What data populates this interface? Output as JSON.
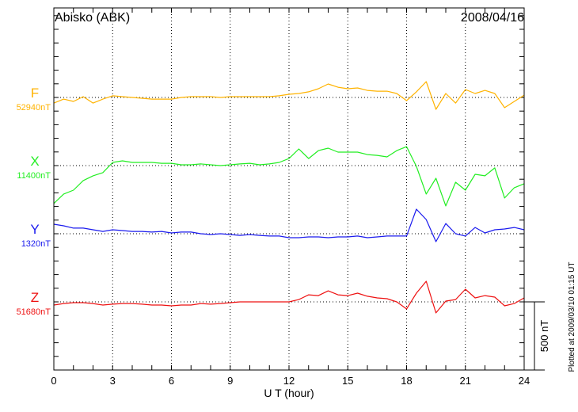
{
  "chart_data": {
    "type": "line",
    "title": "Abisko (ABK)",
    "date": "2008/04/16",
    "xlabel": "U T (hour)",
    "xlim": [
      0,
      24
    ],
    "x_ticks": [
      "0",
      "3",
      "6",
      "9",
      "12",
      "15",
      "18",
      "21",
      "24"
    ],
    "x_step_hours": 0.5,
    "scale_label": "500 nT",
    "scale_nT": 500,
    "tick_interval_nT": 100,
    "footer": "Plotted at 2009/03/10 01:15 UT",
    "grid": true,
    "series": [
      {
        "name": "F",
        "baseline_label": "52940nT",
        "color": "#ffb300",
        "values": [
          -41,
          -12,
          -29,
          6,
          -41,
          -12,
          12,
          6,
          0,
          -6,
          -12,
          -12,
          -12,
          0,
          6,
          6,
          6,
          0,
          6,
          6,
          6,
          6,
          6,
          12,
          23,
          29,
          41,
          64,
          99,
          75,
          64,
          70,
          52,
          46,
          46,
          29,
          -23,
          41,
          116,
          -87,
          29,
          -41,
          58,
          29,
          52,
          29,
          -75,
          -29,
          17
        ]
      },
      {
        "name": "X",
        "baseline_label": "11400nT",
        "color": "#22ee22",
        "values": [
          -278,
          -209,
          -180,
          -110,
          -75,
          -52,
          23,
          35,
          23,
          23,
          23,
          17,
          17,
          6,
          6,
          12,
          6,
          0,
          6,
          12,
          17,
          6,
          12,
          23,
          52,
          122,
          52,
          110,
          128,
          99,
          99,
          99,
          81,
          75,
          64,
          110,
          139,
          -6,
          -209,
          -93,
          -296,
          -122,
          -180,
          -64,
          -75,
          -17,
          -238,
          -162,
          -133
        ]
      },
      {
        "name": "Y",
        "baseline_label": "1320nT",
        "color": "#1a1aee",
        "values": [
          70,
          58,
          41,
          41,
          29,
          17,
          29,
          23,
          17,
          17,
          12,
          17,
          6,
          12,
          12,
          0,
          -6,
          0,
          -6,
          -12,
          -6,
          -12,
          -17,
          -17,
          -29,
          -29,
          -23,
          -23,
          -29,
          -23,
          -23,
          -17,
          -29,
          -23,
          -17,
          -17,
          -17,
          180,
          104,
          -58,
          75,
          0,
          -17,
          46,
          6,
          29,
          35,
          46,
          29
        ]
      },
      {
        "name": "Z",
        "baseline_label": "51680nT",
        "color": "#ee1111",
        "values": [
          -23,
          -12,
          -6,
          -6,
          -12,
          -23,
          -17,
          -12,
          -12,
          -17,
          -23,
          -23,
          -29,
          -23,
          -23,
          -12,
          -17,
          -12,
          -6,
          0,
          0,
          0,
          0,
          0,
          0,
          17,
          52,
          46,
          81,
          52,
          46,
          64,
          41,
          29,
          23,
          0,
          -52,
          64,
          151,
          -81,
          6,
          17,
          93,
          29,
          46,
          35,
          -29,
          -12,
          29
        ]
      }
    ]
  }
}
